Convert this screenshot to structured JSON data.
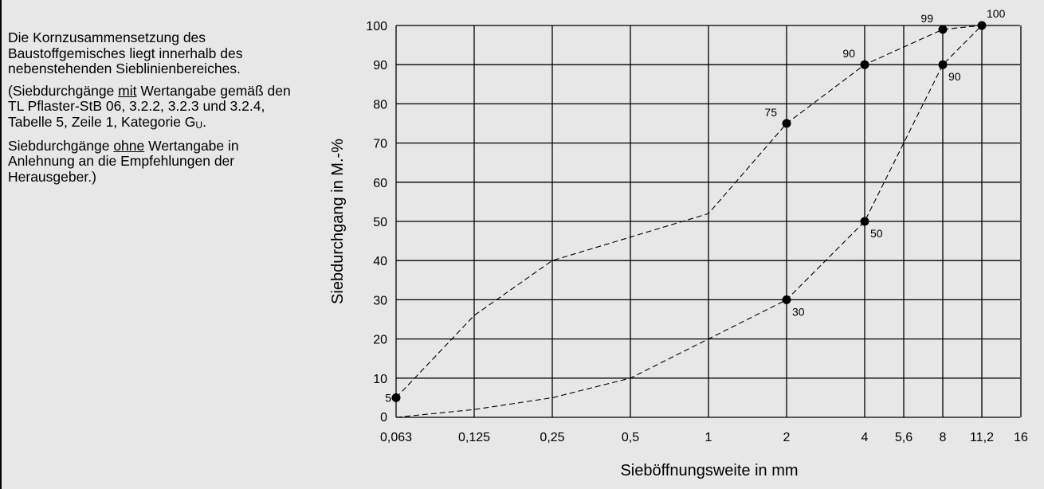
{
  "description": {
    "paragraph1": "Die Kornzusammensetzung des Baustoffgemisches liegt innerhalb des nebenstehenden Sieblinien­bereiches.",
    "paragraph2": {
      "before_mit": "(Siebdurchgänge ",
      "mit": "mit",
      "after_mit": " Wertangabe gemäß den TL Pflaster-StB 06, 3.2.2, 3.2.3 und 3.2.4, Tabelle 5, Zeile 1, Kategorie G",
      "subscript": "U",
      "end": "."
    },
    "paragraph3": {
      "before_ohne": "Siebdurchgänge ",
      "ohne": "ohne",
      "after_ohne": " Wertanga­be in Anlehnung an die Empfeh­lungen der Herausgeber.)"
    }
  },
  "chart_data": {
    "type": "line",
    "xlabel": "Sieböffnungsweite in mm",
    "ylabel": "Siebdurchgang in M.-%",
    "x_scale": "ordinal-sieve",
    "x_ticks": [
      "0,063",
      "0,125",
      "0,25",
      "0,5",
      "1",
      "2",
      "4",
      "5,6",
      "8",
      "11,2",
      "16"
    ],
    "x_tick_values": [
      0.063,
      0.125,
      0.25,
      0.5,
      1,
      2,
      4,
      5.6,
      8,
      11.2,
      16
    ],
    "y_ticks": [
      0,
      10,
      20,
      30,
      40,
      50,
      60,
      70,
      80,
      90,
      100
    ],
    "ylim": [
      0,
      100
    ],
    "grid": true,
    "series": [
      {
        "line_style": "dashed",
        "points": [
          [
            0.063,
            5
          ],
          [
            0.125,
            26
          ],
          [
            0.25,
            40
          ],
          [
            0.5,
            46
          ],
          [
            1,
            52
          ],
          [
            2,
            75
          ],
          [
            4,
            90
          ],
          [
            8,
            99
          ],
          [
            11.2,
            100
          ]
        ]
      },
      {
        "line_style": "dashed",
        "points": [
          [
            0.063,
            0
          ],
          [
            0.125,
            2
          ],
          [
            0.25,
            5
          ],
          [
            0.5,
            10
          ],
          [
            1,
            20
          ],
          [
            2,
            30
          ],
          [
            4,
            50
          ],
          [
            5.6,
            70
          ],
          [
            8,
            90
          ],
          [
            11.2,
            100
          ]
        ]
      }
    ],
    "marked_points": [
      {
        "x": 0.063,
        "y": 5,
        "label": "5",
        "label_side": "left"
      },
      {
        "x": 2,
        "y": 75,
        "label": "75",
        "label_side": "left"
      },
      {
        "x": 4,
        "y": 90,
        "label": "90",
        "label_side": "left"
      },
      {
        "x": 8,
        "y": 99,
        "label": "99",
        "label_side": "left"
      },
      {
        "x": 11.2,
        "y": 100,
        "label": "100",
        "label_side": "right"
      },
      {
        "x": 2,
        "y": 30,
        "label": "30",
        "label_side": "right"
      },
      {
        "x": 4,
        "y": 50,
        "label": "50",
        "label_side": "right"
      },
      {
        "x": 8,
        "y": 90,
        "label": "90",
        "label_side": "right"
      }
    ]
  }
}
